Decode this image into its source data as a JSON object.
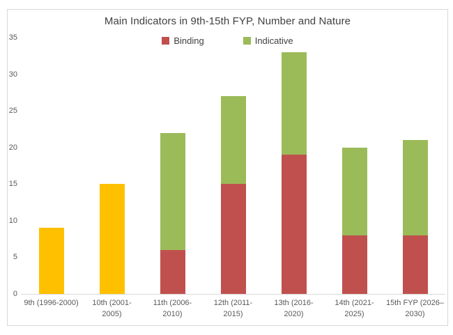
{
  "chart_data": {
    "type": "bar",
    "stacked": true,
    "title": "Main Indicators in 9th-15th FYP, Number and Nature",
    "categories": [
      "9th (1996-2000)",
      "10th (2001-2005)",
      "11th (2006-2010)",
      "12th (2011-2015)",
      "13th (2016-2020)",
      "14th (2021-2025)",
      "15th FYP (2026–2030)"
    ],
    "series": [
      {
        "name": "",
        "color": "#FFC000",
        "in_legend": false,
        "values": [
          9,
          15,
          0,
          0,
          0,
          0,
          0
        ]
      },
      {
        "name": "Binding",
        "color": "#C0504D",
        "in_legend": true,
        "values": [
          0,
          0,
          6,
          15,
          19,
          8,
          8
        ]
      },
      {
        "name": "Indicative",
        "color": "#9BBB59",
        "in_legend": true,
        "values": [
          0,
          0,
          16,
          12,
          14,
          12,
          13
        ]
      }
    ],
    "totals": [
      9,
      15,
      22,
      27,
      33,
      20,
      21
    ],
    "xlabel": "",
    "ylabel": "",
    "ylim": [
      0,
      35
    ],
    "yticks": [
      0,
      5,
      10,
      15,
      20,
      25,
      30,
      35
    ],
    "grid": false,
    "legend_position": "top"
  }
}
